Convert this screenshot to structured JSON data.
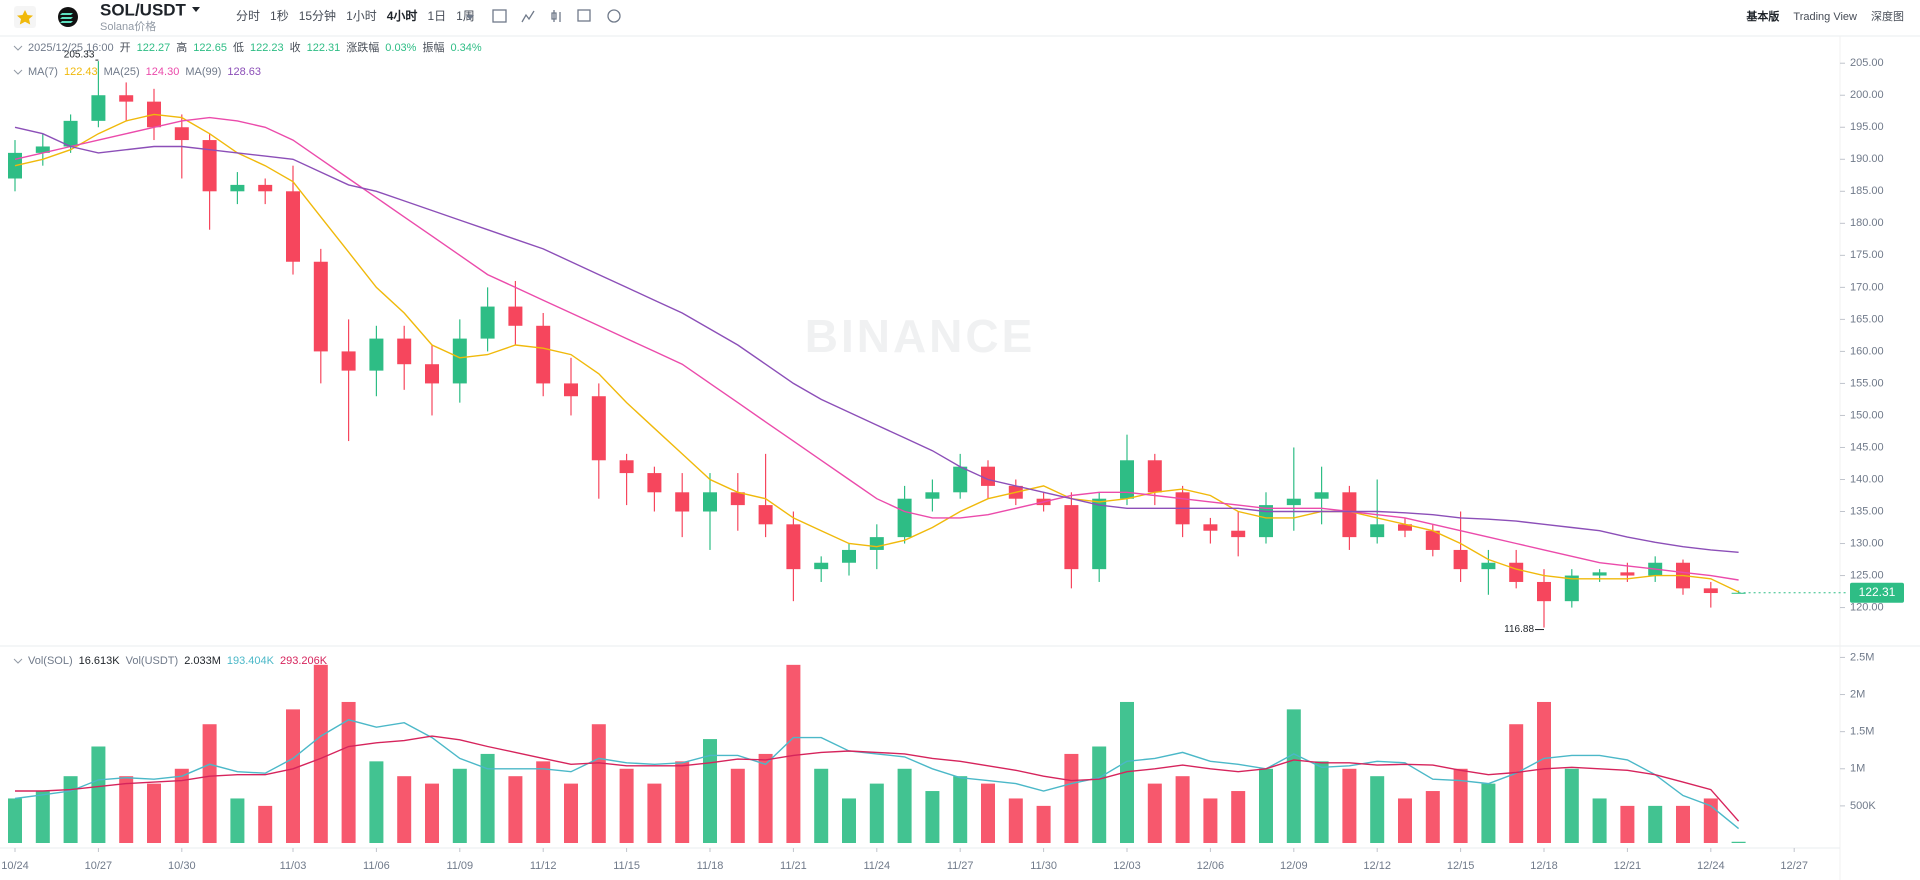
{
  "header": {
    "symbol": "SOL/USDT",
    "subtitle": "Solana价格",
    "intervals": [
      "分时",
      "1秒",
      "15分钟",
      "1小时",
      "4小时",
      "1日",
      "1周"
    ],
    "active_interval": "4小时",
    "views": [
      "基本版",
      "Trading View",
      "深度图"
    ]
  },
  "chart_data": [
    {
      "type": "candlestick",
      "info": {
        "time": "2025/12/25 16:00",
        "items": [
          {
            "label": "开",
            "value": "122.27"
          },
          {
            "label": "高",
            "value": "122.65"
          },
          {
            "label": "低",
            "value": "122.23"
          },
          {
            "label": "收",
            "value": "122.31"
          },
          {
            "label": "涨跌幅",
            "value": "0.03%"
          },
          {
            "label": "振幅",
            "value": "0.34%"
          }
        ]
      },
      "open": [
        187,
        191,
        192,
        196,
        200,
        199,
        195,
        193,
        185,
        186,
        185,
        174,
        160,
        157,
        162,
        158,
        155,
        162,
        167,
        164,
        155,
        153,
        143,
        141,
        138,
        135,
        138,
        136,
        133,
        126,
        127,
        129,
        131,
        137,
        138,
        142,
        139,
        137,
        136,
        126,
        137,
        143,
        138,
        133,
        132,
        131,
        136,
        137,
        138,
        131,
        133,
        132,
        129,
        126,
        127,
        124,
        121,
        125,
        125.5,
        125,
        127,
        123,
        122.27,
        null,
        null
      ],
      "high": [
        193,
        194,
        197,
        205.33,
        202,
        201,
        197,
        194,
        188,
        187,
        189,
        176,
        165,
        164,
        164,
        161,
        165,
        170,
        171,
        166,
        159,
        155,
        144,
        142,
        141,
        141,
        141,
        144,
        135,
        128,
        130,
        133,
        139,
        140,
        144,
        143,
        140,
        138,
        138,
        138,
        147,
        144,
        139,
        134,
        135,
        138,
        145,
        142,
        139,
        140,
        134,
        133,
        135,
        129,
        129,
        126,
        126,
        126,
        127,
        128,
        127.5,
        124,
        122.65,
        null,
        null
      ],
      "low": [
        185,
        189,
        191,
        195,
        196,
        193,
        187,
        179,
        183,
        183,
        172,
        155,
        146,
        153,
        154,
        150,
        152,
        160,
        161,
        153,
        150,
        137,
        136,
        135,
        131,
        129,
        132,
        131,
        121,
        124,
        125,
        126,
        130,
        135,
        137,
        137,
        136,
        135,
        123,
        124,
        136,
        136,
        131,
        130,
        128,
        130,
        132,
        133,
        129,
        130,
        131,
        128,
        124,
        122,
        123,
        116.88,
        120,
        124,
        124,
        124,
        122,
        120,
        122.23,
        null,
        null
      ],
      "close": [
        191,
        192,
        196,
        200,
        199,
        195,
        193,
        185,
        186,
        185,
        174,
        160,
        157,
        162,
        158,
        155,
        162,
        167,
        164,
        155,
        153,
        143,
        141,
        138,
        135,
        138,
        136,
        133,
        126,
        127,
        129,
        131,
        137,
        138,
        142,
        139,
        137,
        136,
        126,
        137,
        143,
        138,
        133,
        132,
        131,
        136,
        137,
        138,
        131,
        133,
        132,
        129,
        126,
        127,
        124,
        121,
        125,
        125.5,
        125,
        127,
        123,
        122.27,
        122.31,
        null,
        null
      ],
      "up_color": "#2ebd85",
      "down_color": "#f6465d",
      "series": [
        {
          "name": "MA(7)",
          "color": "#f0b90b",
          "legend_value": "122.43",
          "values": [
            189,
            190,
            191.5,
            194,
            196,
            197,
            196.5,
            194,
            191,
            189,
            186.5,
            181,
            175.5,
            170,
            166,
            161,
            159,
            159.5,
            161,
            160.5,
            159.5,
            156.5,
            152,
            148,
            144,
            140,
            138,
            137,
            134,
            132,
            130,
            129.5,
            130.5,
            132.5,
            135,
            137,
            138,
            139,
            137,
            136.5,
            137,
            138,
            138.5,
            137.5,
            135,
            134,
            134,
            135,
            135,
            134,
            133,
            132,
            130,
            127.5,
            126,
            125,
            124.5,
            124.5,
            124.5,
            125,
            125,
            124.5,
            122.43,
            null,
            null
          ]
        },
        {
          "name": "MA(25)",
          "color": "#eb4bab",
          "legend_value": "124.30",
          "values": [
            190,
            191,
            192,
            193,
            194,
            195,
            196,
            196.5,
            196,
            195,
            193,
            190,
            187,
            184,
            181,
            178,
            175,
            172,
            170,
            168,
            166,
            164,
            162,
            160,
            158,
            155,
            152,
            149,
            146,
            143,
            140,
            137,
            135,
            134,
            134,
            134.5,
            135.5,
            136.5,
            137.5,
            138,
            138,
            137.5,
            137,
            136.5,
            136,
            135.5,
            135.5,
            135.5,
            135,
            134.5,
            134,
            133,
            132,
            131,
            130,
            129,
            128,
            127,
            126.5,
            126,
            125.5,
            125,
            124.3,
            null,
            null
          ]
        },
        {
          "name": "MA(99)",
          "color": "#8c4fb8",
          "legend_value": "128.63",
          "values": [
            195,
            194,
            192,
            191,
            191.5,
            192,
            192,
            191.5,
            191,
            190.5,
            190,
            188,
            186,
            185,
            183.5,
            182,
            180.5,
            179,
            177.5,
            176,
            174,
            172,
            170,
            168,
            166,
            163.5,
            161,
            158,
            155,
            152.5,
            150.5,
            148.5,
            146.5,
            144.5,
            142,
            140,
            139,
            138,
            137,
            136,
            135.5,
            135.5,
            135.5,
            135.5,
            135.5,
            135,
            135,
            135,
            135,
            135,
            134.8,
            134.5,
            134,
            133.8,
            133.5,
            133,
            132.5,
            132,
            131,
            130.2,
            129.5,
            129,
            128.63,
            null,
            null
          ]
        }
      ],
      "ylim": [
        114,
        208
      ],
      "yticks": [
        {
          "value": 120,
          "label": "120.00"
        },
        {
          "value": 125,
          "label": "125.00"
        },
        {
          "value": 130,
          "label": "130.00"
        },
        {
          "value": 135,
          "label": "135.00"
        },
        {
          "value": 140,
          "label": "140.00"
        },
        {
          "value": 145,
          "label": "145.00"
        },
        {
          "value": 150,
          "label": "150.00"
        },
        {
          "value": 155,
          "label": "155.00"
        },
        {
          "value": 160,
          "label": "160.00"
        },
        {
          "value": 165,
          "label": "165.00"
        },
        {
          "value": 170,
          "label": "170.00"
        },
        {
          "value": 175,
          "label": "175.00"
        },
        {
          "value": 180,
          "label": "180.00"
        },
        {
          "value": 185,
          "label": "185.00"
        },
        {
          "value": 190,
          "label": "190.00"
        },
        {
          "value": 195,
          "label": "195.00"
        },
        {
          "value": 200,
          "label": "200.00"
        },
        {
          "value": 205,
          "label": "205.00"
        }
      ],
      "high_label": "205.33",
      "low_label": "116.88",
      "price_tag": "122.31",
      "watermark": "BINANCE"
    },
    {
      "type": "bar",
      "categories": [
        "10/24",
        null,
        null,
        "10/27",
        null,
        null,
        "10/30",
        null,
        null,
        null,
        "11/03",
        null,
        null,
        "11/06",
        null,
        null,
        "11/09",
        null,
        null,
        "11/12",
        null,
        null,
        "11/15",
        null,
        null,
        "11/18",
        null,
        null,
        "11/21",
        null,
        null,
        "11/24",
        null,
        null,
        "11/27",
        null,
        null,
        "11/30",
        null,
        null,
        "12/03",
        null,
        null,
        "12/06",
        null,
        null,
        "12/09",
        null,
        null,
        "12/12",
        null,
        null,
        "12/15",
        null,
        null,
        "12/18",
        null,
        null,
        "12/21",
        null,
        null,
        "12/24",
        null,
        null,
        "12/27"
      ],
      "legend": [
        {
          "label": "Vol(SOL)",
          "value": "16.613K"
        },
        {
          "label": "Vol(USDT)",
          "value": "2.033M"
        }
      ],
      "values": [
        600000,
        700000,
        900000,
        1300000,
        900000,
        800000,
        1000000,
        1600000,
        600000,
        500000,
        1800000,
        2400000,
        1900000,
        1100000,
        900000,
        800000,
        1000000,
        1200000,
        900000,
        1100000,
        800000,
        1600000,
        1000000,
        800000,
        1100000,
        1400000,
        1000000,
        1200000,
        2400000,
        1000000,
        600000,
        800000,
        1000000,
        700000,
        900000,
        800000,
        600000,
        500000,
        1200000,
        1300000,
        1900000,
        800000,
        900000,
        600000,
        700000,
        1000000,
        1800000,
        1100000,
        1000000,
        900000,
        600000,
        700000,
        1000000,
        800000,
        1600000,
        1900000,
        1000000,
        600000,
        500000,
        500000,
        500000,
        600000,
        16613,
        null,
        null
      ],
      "series": [
        {
          "color": "#4bb8c8",
          "legend_value": "193.404K",
          "values": [
            600000,
            650000,
            700000,
            850000,
            880000,
            860000,
            900000,
            1060000,
            960000,
            940000,
            1140000,
            1440000,
            1660000,
            1560000,
            1620000,
            1420000,
            1140000,
            1000000,
            1000000,
            1000000,
            960000,
            1140000,
            1080000,
            1060000,
            1080000,
            1180000,
            1180000,
            1060000,
            1420000,
            1420000,
            1240000,
            1200000,
            1160000,
            1000000,
            880000,
            840000,
            800000,
            700000,
            800000,
            880000,
            1100000,
            1140000,
            1220000,
            1100000,
            1060000,
            1000000,
            1200000,
            1020000,
            1040000,
            1100000,
            1080000,
            860000,
            840000,
            800000,
            940000,
            1140000,
            1180000,
            1180000,
            1120000,
            920000,
            640000,
            500000,
            193404,
            null,
            null
          ]
        },
        {
          "color": "#d6245c",
          "legend_value": "293.206K",
          "values": [
            700000,
            700000,
            720000,
            760000,
            800000,
            820000,
            840000,
            900000,
            920000,
            920000,
            1000000,
            1140000,
            1300000,
            1350000,
            1380000,
            1440000,
            1390000,
            1300000,
            1220000,
            1140000,
            1060000,
            1080000,
            1040000,
            1040000,
            1040000,
            1080000,
            1130000,
            1120000,
            1180000,
            1220000,
            1240000,
            1220000,
            1200000,
            1140000,
            1100000,
            1040000,
            980000,
            900000,
            840000,
            860000,
            960000,
            1000000,
            1050000,
            1000000,
            960000,
            1000000,
            1120000,
            1080000,
            1080000,
            1050000,
            1060000,
            1050000,
            980000,
            920000,
            950000,
            1000000,
            1020000,
            1000000,
            980000,
            920000,
            820000,
            720000,
            293206,
            null,
            null
          ]
        }
      ],
      "ylim": [
        0,
        2600000
      ],
      "yticks": [
        {
          "value": 500000,
          "label": "500K"
        },
        {
          "value": 1000000,
          "label": "1M"
        },
        {
          "value": 1500000,
          "label": "1.5M"
        },
        {
          "value": 2000000,
          "label": "2M"
        },
        {
          "value": 2500000,
          "label": "2.5M"
        }
      ]
    }
  ]
}
